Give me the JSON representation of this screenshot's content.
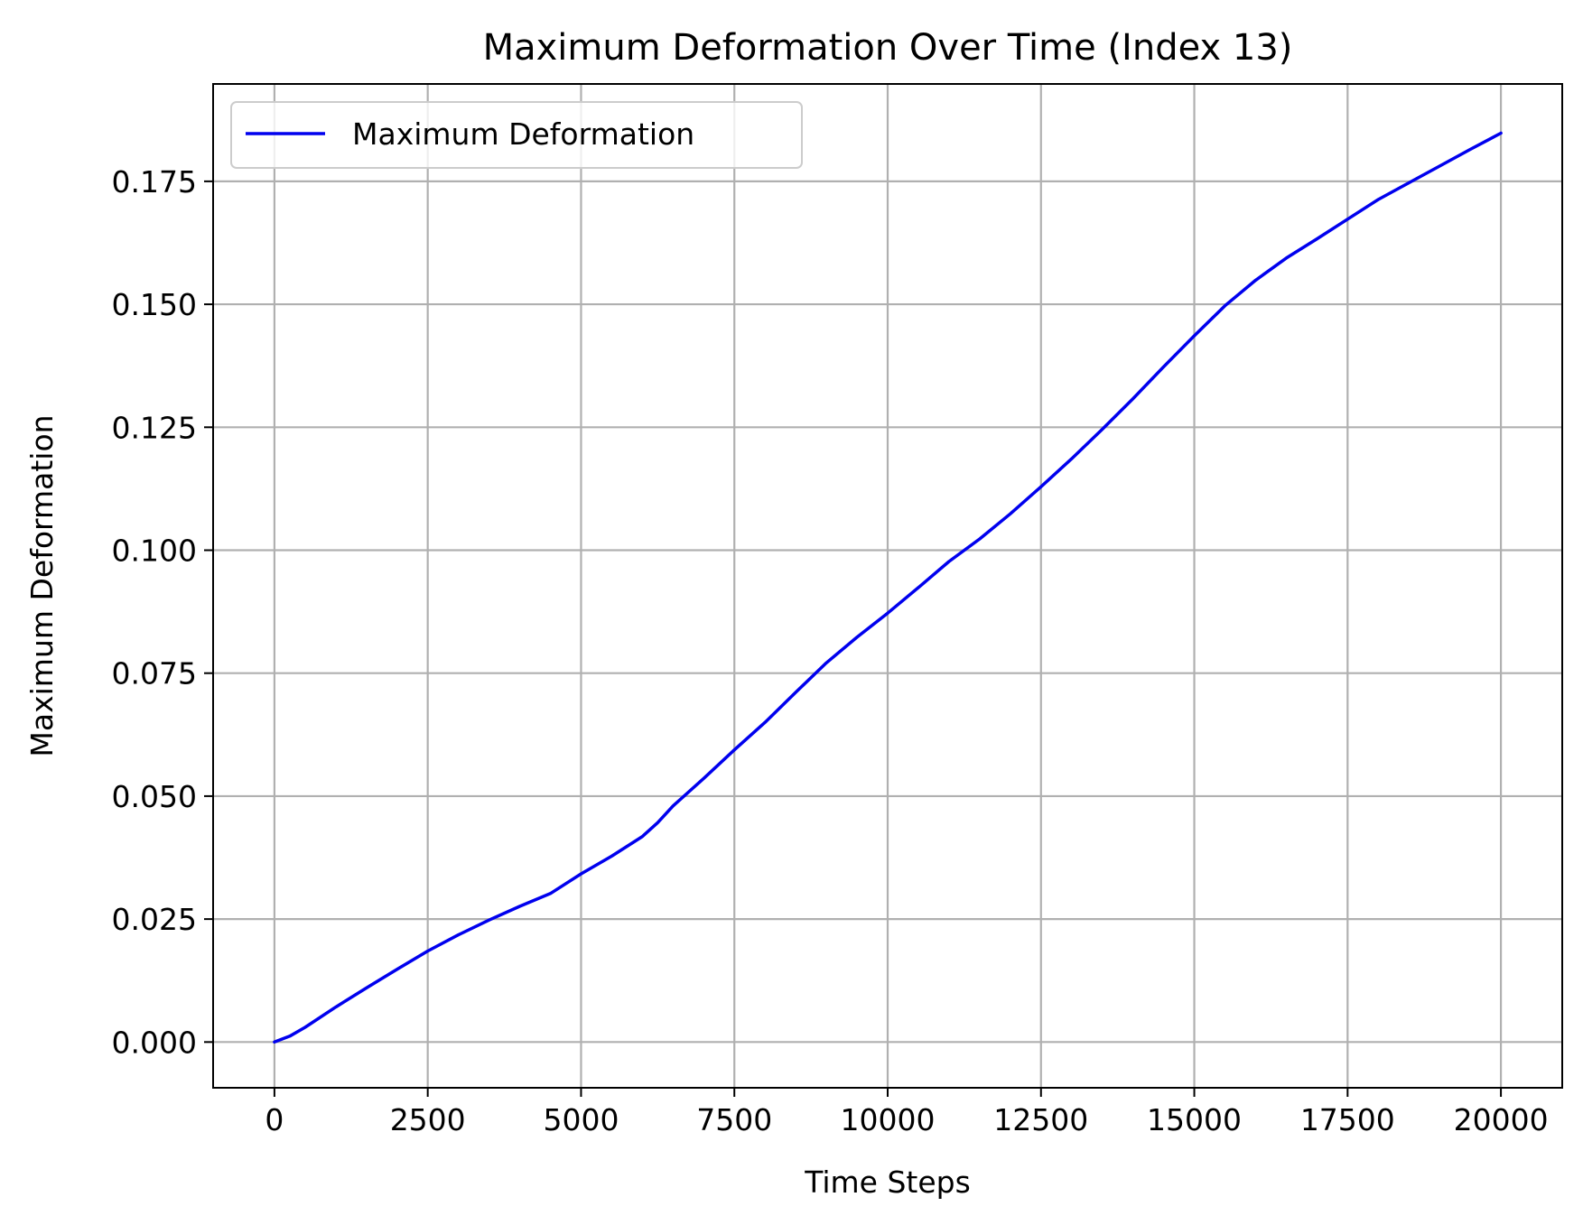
{
  "chart_data": {
    "type": "line",
    "title": "Maximum Deformation Over Time (Index 13)",
    "xlabel": "Time Steps",
    "ylabel": "Maximum Deformation",
    "xlim": [
      -1000,
      21000
    ],
    "ylim": [
      -0.0093,
      0.1948
    ],
    "xticks": [
      0,
      2500,
      5000,
      7500,
      10000,
      12500,
      15000,
      17500,
      20000
    ],
    "xtick_labels": [
      "0",
      "2500",
      "5000",
      "7500",
      "10000",
      "12500",
      "15000",
      "17500",
      "20000"
    ],
    "yticks": [
      0,
      0.025,
      0.05,
      0.075,
      0.1,
      0.125,
      0.15,
      0.175
    ],
    "ytick_labels": [
      "0.000",
      "0.025",
      "0.050",
      "0.075",
      "0.100",
      "0.125",
      "0.150",
      "0.175"
    ],
    "grid": true,
    "legend_position": "top-left",
    "series": [
      {
        "name": "Maximum Deformation",
        "color": "#0000ee",
        "x": [
          0,
          250,
          500,
          1000,
          1500,
          2000,
          2500,
          3000,
          3500,
          4000,
          4500,
          5000,
          5500,
          6000,
          6250,
          6500,
          7000,
          7500,
          8000,
          8500,
          9000,
          9500,
          10000,
          10500,
          11000,
          11500,
          12000,
          12500,
          13000,
          13500,
          14000,
          14500,
          15000,
          15500,
          16000,
          16500,
          17000,
          17500,
          18000,
          18500,
          19000,
          19500,
          20000
        ],
        "y": [
          0.0,
          0.0012,
          0.003,
          0.0071,
          0.011,
          0.0148,
          0.0185,
          0.0218,
          0.0248,
          0.0276,
          0.0302,
          0.0342,
          0.0378,
          0.0418,
          0.0446,
          0.048,
          0.0536,
          0.0594,
          0.065,
          0.0711,
          0.0771,
          0.0823,
          0.0872,
          0.0924,
          0.0977,
          0.1023,
          0.1074,
          0.1129,
          0.1186,
          0.1246,
          0.1308,
          0.1373,
          0.1436,
          0.1497,
          0.1549,
          0.1594,
          0.1633,
          0.1673,
          0.1713,
          0.1747,
          0.1781,
          0.1815,
          0.1848
        ]
      }
    ]
  }
}
